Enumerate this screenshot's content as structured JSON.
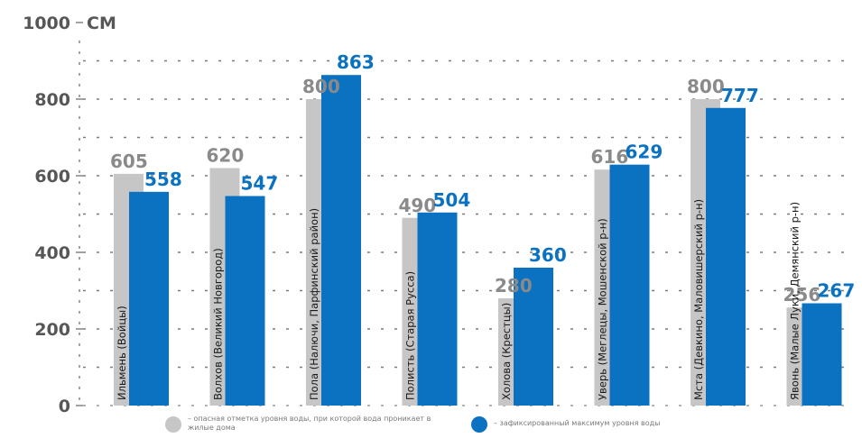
{
  "chart_data": {
    "type": "bar",
    "unit": "СМ",
    "ylim": [
      0,
      1000
    ],
    "yticks": [
      0,
      200,
      400,
      600,
      800,
      1000
    ],
    "grid": true,
    "categories": [
      "Ильмень (Войцы)",
      "Волхов (Великий Новгород)",
      "Пола (Налючи, Парфинский район)",
      "Полисть (Старая Русса)",
      "Холова (Крестцы)",
      "Уверь (Меглецы, Мошенской р-н)",
      "Мста (Девкино, Маловишерский р-н)",
      "Явонь (Малые Луки, Демянский р-н)"
    ],
    "series": [
      {
        "values": [
          605,
          620,
          800,
          490,
          280,
          616,
          800,
          256
        ],
        "color": "#c6c6c6",
        "label_color": "#8a8a8a"
      },
      {
        "values": [
          558,
          547,
          863,
          504,
          360,
          629,
          777,
          267
        ],
        "color": "#0a72c1",
        "label_color": "#0a72c1"
      }
    ],
    "legend": [
      {
        "text": "– опасная отметка уровня воды, при которой вода проникает в жилые дома",
        "color": "#c6c6c6"
      },
      {
        "text": "– зафиксированный максимум уровня воды",
        "color": "#0a72c1"
      }
    ]
  }
}
